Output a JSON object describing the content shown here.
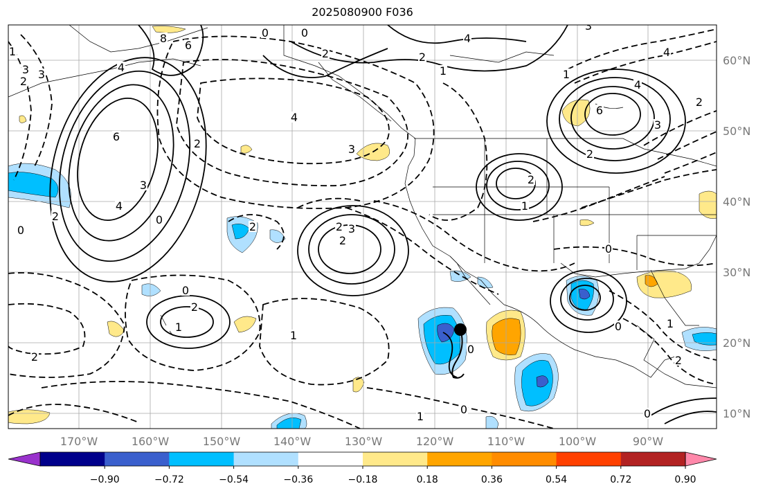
{
  "title": "2025080900 F036",
  "map": {
    "lon_labels": [
      "170°W",
      "160°W",
      "150°W",
      "140°W",
      "130°W",
      "120°W",
      "110°W",
      "100°W",
      "90°W"
    ],
    "lat_labels": [
      "60°N",
      "50°N",
      "40°N",
      "30°N",
      "20°N",
      "10°N"
    ],
    "contour_labels": [
      {
        "text": "0"
      },
      {
        "text": "0"
      },
      {
        "text": "2"
      },
      {
        "text": "8"
      },
      {
        "text": "6"
      },
      {
        "text": "4"
      },
      {
        "text": "3"
      },
      {
        "text": "2"
      },
      {
        "text": "1"
      },
      {
        "text": "3"
      },
      {
        "text": "4"
      },
      {
        "text": "2"
      },
      {
        "text": "1"
      },
      {
        "text": "6"
      },
      {
        "text": "4"
      },
      {
        "text": "3"
      },
      {
        "text": "2"
      },
      {
        "text": "4"
      },
      {
        "text": "3"
      },
      {
        "text": "0"
      },
      {
        "text": "2"
      },
      {
        "text": "2"
      },
      {
        "text": "2"
      },
      {
        "text": "0"
      },
      {
        "text": "2"
      },
      {
        "text": "1"
      },
      {
        "text": "1"
      },
      {
        "text": "2"
      },
      {
        "text": "2"
      },
      {
        "text": "6"
      },
      {
        "text": "4"
      },
      {
        "text": "3"
      },
      {
        "text": "0"
      },
      {
        "text": "0"
      },
      {
        "text": "2"
      },
      {
        "text": "1"
      },
      {
        "text": "0"
      },
      {
        "text": "1"
      },
      {
        "text": "2"
      },
      {
        "text": "0"
      },
      {
        "text": "0"
      },
      {
        "text": "1"
      },
      {
        "text": "0"
      },
      {
        "text": "3"
      },
      {
        "text": "2"
      },
      {
        "text": "2"
      },
      {
        "text": "4"
      },
      {
        "text": "3"
      },
      {
        "text": "1"
      }
    ],
    "shading_colors": {
      "strong_negative": "#3a5fcd",
      "negative": "#00bfff",
      "weak_negative": "#aee0ff",
      "weak_positive": "#ffe98a",
      "positive": "#ffa500",
      "strong_positive": "#ff4000"
    },
    "marker": {
      "symbol": "filled-circle",
      "color": "#000000"
    }
  },
  "colorbar": {
    "tick_labels": [
      "−0.90",
      "−0.72",
      "−0.54",
      "−0.36",
      "−0.18",
      "0.18",
      "0.36",
      "0.54",
      "0.72",
      "0.90"
    ],
    "colors": [
      "#9932cc",
      "#00008b",
      "#3a5fcd",
      "#00bfff",
      "#b0e0ff",
      "#ffffff",
      "#ffe98a",
      "#ffa500",
      "#ff8c00",
      "#ff4000",
      "#b22222",
      "#ff88aa"
    ]
  }
}
